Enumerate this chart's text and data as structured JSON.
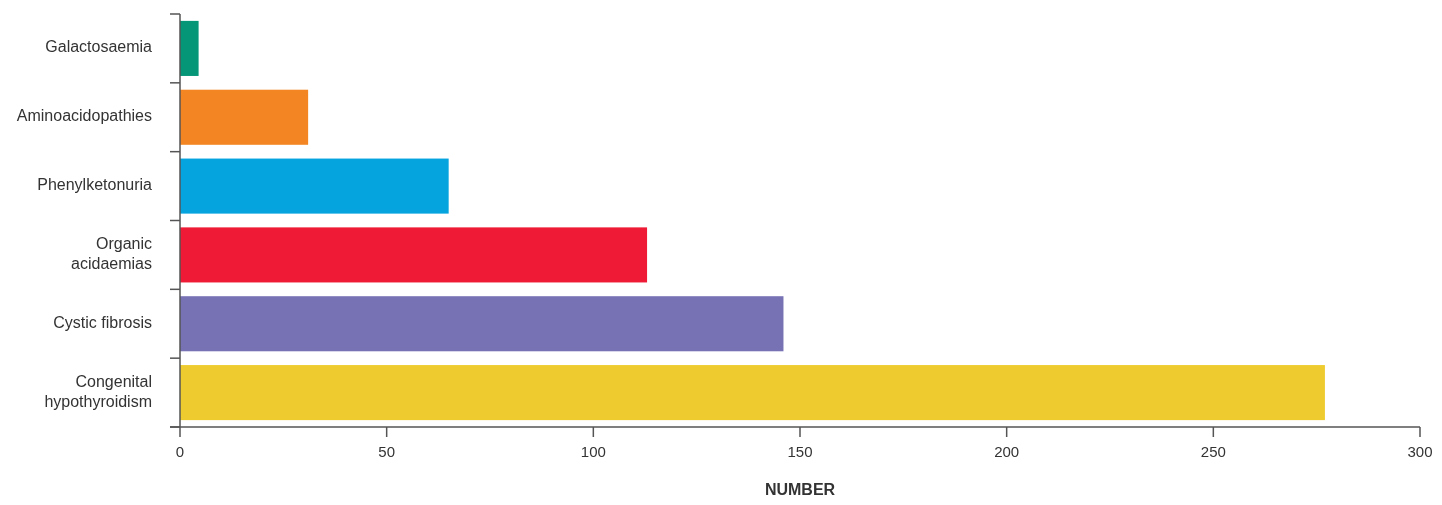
{
  "chart_data": {
    "type": "bar",
    "orientation": "horizontal",
    "xlabel": "NUMBER",
    "categories": [
      "Galactosaemia",
      "Aminoacidopathies",
      "Phenylketonuria",
      "Organic acidaemias",
      "Cystic fibrosis",
      "Congenital hypothyroidism"
    ],
    "values": [
      4.5,
      31,
      65,
      113,
      146,
      277
    ],
    "colors": [
      "#049677",
      "#f38522",
      "#06a4df",
      "#ee1a36",
      "#7672b4",
      "#eecc30"
    ],
    "xlim": [
      0,
      300
    ],
    "xticks": [
      0,
      50,
      100,
      150,
      200,
      250,
      300
    ],
    "grid": false
  }
}
